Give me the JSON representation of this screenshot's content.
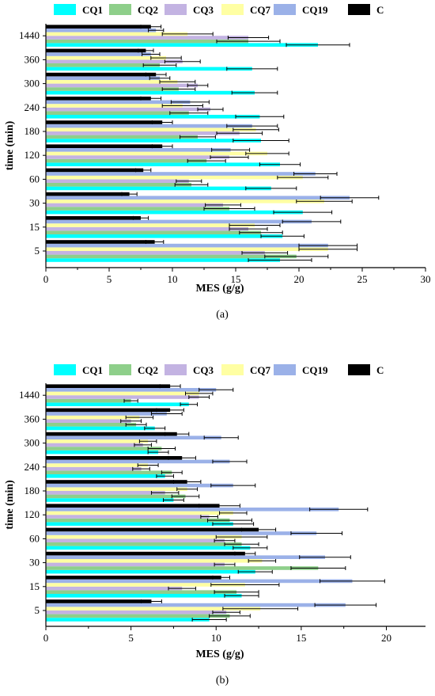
{
  "chart_data": [
    {
      "type": "bar",
      "orientation": "horizontal",
      "panel_label": "(a)",
      "xlabel": "MES (g/g)",
      "ylabel": "time (min)",
      "xlim": [
        0,
        30
      ],
      "xticks": [
        "0",
        "5",
        "10",
        "15",
        "20",
        "25",
        "30"
      ],
      "categories": [
        "5",
        "15",
        "30",
        "60",
        "120",
        "180",
        "240",
        "300",
        "360",
        "1440"
      ],
      "series": [
        {
          "name": "CQ1",
          "color": "#00FFFF",
          "values": [
            18.5,
            18.7,
            20.3,
            17.8,
            18.5,
            17.0,
            16.9,
            16.5,
            16.3,
            21.5
          ],
          "errors": [
            2.5,
            1.7,
            2.3,
            2.0,
            1.6,
            2.2,
            1.9,
            1.8,
            2.0,
            2.5
          ]
        },
        {
          "name": "CQ2",
          "color": "#8ECF8A",
          "values": [
            19.8,
            17.0,
            14.5,
            11.5,
            12.7,
            12.0,
            11.3,
            10.5,
            9.0,
            16.0
          ],
          "errors": [
            2.5,
            1.7,
            2.0,
            1.3,
            1.5,
            1.4,
            1.5,
            1.3,
            1.3,
            2.5
          ]
        },
        {
          "name": "CQ3",
          "color": "#C3B3E2",
          "values": [
            17.3,
            16.0,
            14.0,
            11.3,
            14.5,
            15.3,
            13.0,
            12.0,
            10.8,
            16.0
          ],
          "errors": [
            1.8,
            1.5,
            1.4,
            1.0,
            1.5,
            1.8,
            1.0,
            0.8,
            1.4,
            1.6
          ]
        },
        {
          "name": "CQ7",
          "color": "#FFFFA3",
          "values": [
            22.3,
            16.5,
            22.0,
            20.3,
            17.5,
            16.6,
            10.8,
            10.4,
            9.5,
            11.2
          ],
          "errors": [
            2.3,
            2.0,
            2.2,
            2.0,
            1.7,
            1.8,
            1.6,
            1.4,
            1.2,
            2.0
          ]
        },
        {
          "name": "CQ19",
          "color": "#9BB1E8",
          "values": [
            22.3,
            21.0,
            24.0,
            21.3,
            14.6,
            16.3,
            11.4,
            9.0,
            8.3,
            8.7
          ],
          "errors": [
            2.3,
            2.3,
            2.3,
            1.7,
            1.5,
            2.0,
            1.5,
            0.8,
            0.7,
            0.6
          ]
        },
        {
          "name": "C",
          "color": "#000000",
          "values": [
            8.6,
            7.5,
            6.6,
            7.7,
            9.2,
            9.2,
            8.3,
            8.7,
            7.9,
            8.3
          ],
          "errors": [
            0.7,
            0.6,
            0.6,
            0.6,
            0.8,
            0.8,
            0.8,
            0.8,
            0.6,
            0.8
          ]
        }
      ]
    },
    {
      "type": "bar",
      "orientation": "horizontal",
      "panel_label": "(b)",
      "xlabel": "MES (g/g)",
      "ylabel": "time (min)",
      "xlim": [
        0,
        22.3
      ],
      "xticks": [
        "0",
        "5",
        "10",
        "15",
        "20"
      ],
      "categories": [
        "5",
        "15",
        "30",
        "60",
        "120",
        "180",
        "240",
        "300",
        "360",
        "1440"
      ],
      "series": [
        {
          "name": "CQ1",
          "color": "#00FFFF",
          "values": [
            9.6,
            11.5,
            12.3,
            12.0,
            11.0,
            7.5,
            7.0,
            6.6,
            6.4,
            8.4
          ],
          "errors": [
            1.0,
            1.0,
            1.0,
            1.0,
            1.2,
            0.6,
            0.5,
            0.6,
            0.6,
            0.5
          ]
        },
        {
          "name": "CQ2",
          "color": "#8ECF8A",
          "values": [
            10.8,
            11.2,
            16.0,
            11.5,
            10.8,
            8.2,
            7.4,
            6.8,
            5.3,
            5.0
          ],
          "errors": [
            1.2,
            1.3,
            1.6,
            1.0,
            1.3,
            0.8,
            0.6,
            0.8,
            0.6,
            0.4
          ]
        },
        {
          "name": "CQ3",
          "color": "#C3B3E2",
          "values": [
            10.6,
            8.0,
            10.5,
            10.5,
            9.6,
            7.0,
            5.6,
            5.7,
            5.0,
            9.0
          ],
          "errors": [
            0.8,
            0.8,
            0.6,
            0.6,
            0.5,
            0.8,
            0.5,
            0.5,
            0.6,
            0.6
          ]
        },
        {
          "name": "CQ7",
          "color": "#FFFFA3",
          "values": [
            12.6,
            11.7,
            12.7,
            11.5,
            11.0,
            8.3,
            6.0,
            6.0,
            5.5,
            9.0
          ],
          "errors": [
            2.2,
            2.0,
            0.8,
            1.5,
            0.8,
            0.6,
            0.6,
            0.5,
            0.8,
            0.8
          ]
        },
        {
          "name": "CQ19",
          "color": "#9BB1E8",
          "values": [
            17.6,
            18.0,
            16.4,
            15.9,
            17.2,
            11.0,
            10.8,
            10.3,
            7.1,
            10.0
          ],
          "errors": [
            1.8,
            1.9,
            1.5,
            1.5,
            1.7,
            1.3,
            1.0,
            1.0,
            0.9,
            1.0
          ]
        },
        {
          "name": "C",
          "color": "#000000",
          "values": [
            6.2,
            10.3,
            11.7,
            12.5,
            10.2,
            8.3,
            8.0,
            7.7,
            7.3,
            7.3
          ],
          "errors": [
            0.6,
            0.5,
            0.6,
            1.0,
            1.2,
            0.8,
            0.8,
            0.7,
            0.8,
            0.6
          ]
        }
      ]
    }
  ]
}
